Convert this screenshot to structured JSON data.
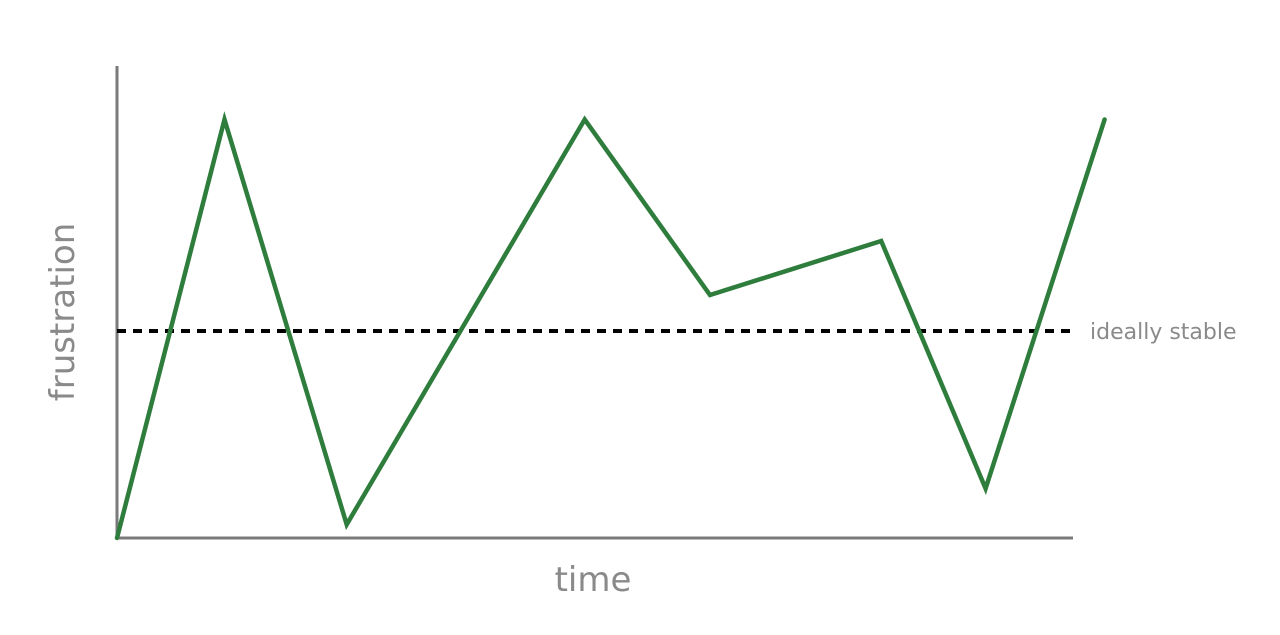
{
  "chart_data": {
    "type": "line",
    "title": "",
    "xlabel": "time",
    "ylabel": "frustration",
    "grid": false,
    "legend": "none",
    "x": [
      0,
      1.03,
      2.2,
      4.48,
      5.68,
      7.32,
      8.32,
      9.46
    ],
    "series": [
      {
        "values": [
          0,
          0.93,
          0.03,
          0.93,
          0.54,
          0.66,
          0.11,
          0.93
        ],
        "color": "#2e7d3c"
      }
    ],
    "reference_line": {
      "label": "ideally stable",
      "value": 0.46,
      "color": "#000000",
      "style": "dashed"
    },
    "xlim": [
      0,
      9.2
    ],
    "ylim": [
      0,
      1.05
    ],
    "axis_color": "#7a7a7a",
    "label_color": "#8a8a8a"
  }
}
